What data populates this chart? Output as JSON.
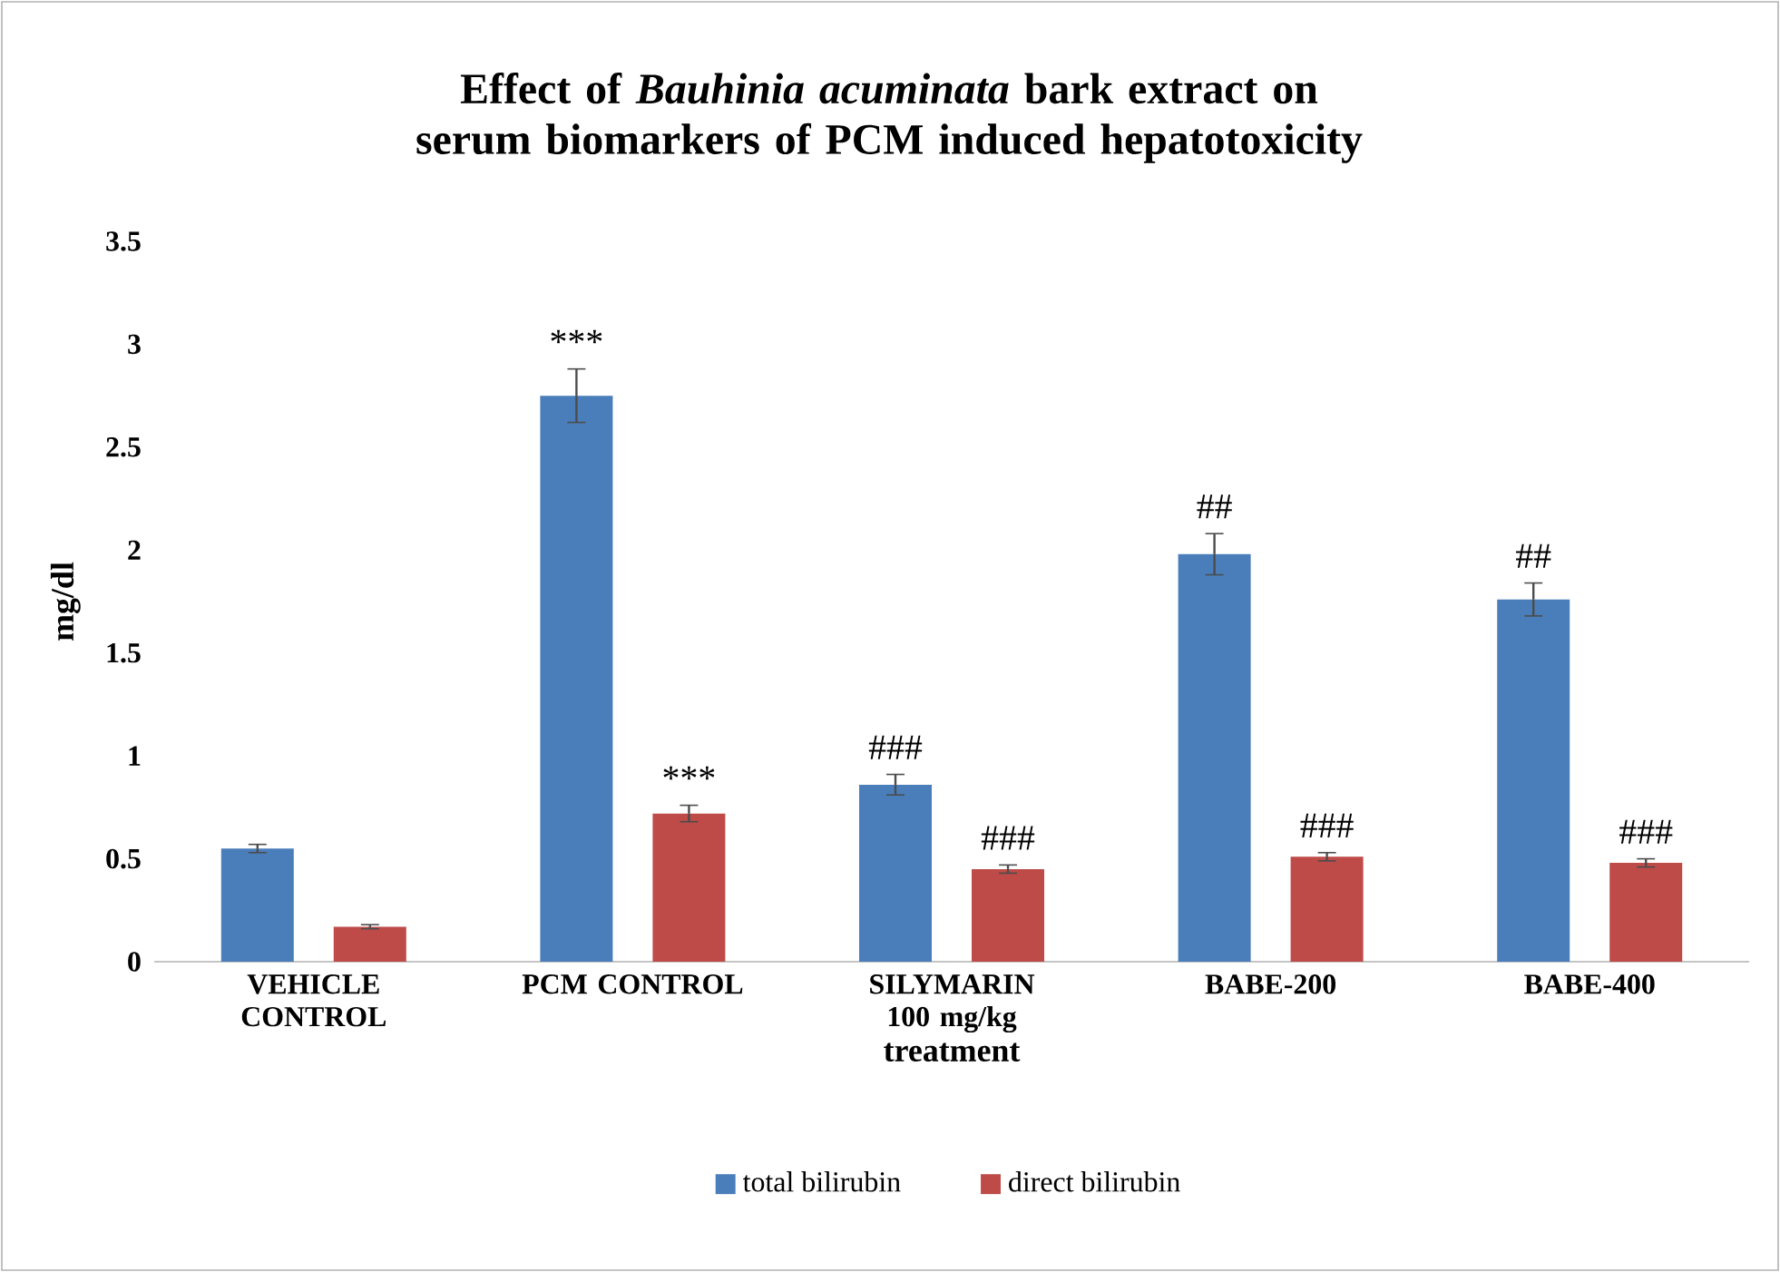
{
  "chart_data": {
    "type": "bar",
    "title": "Effect of *Bauhinia acuminata* bark extract on serum biomarkers of PCM induced hepatotoxicity",
    "xlabel": "treatment",
    "ylabel": "mg/dl",
    "categories": [
      "VEHICLE CONTROL",
      "PCM CONTROL",
      "SILYMARIN 100 mg/kg",
      "BABE-200",
      "BABE-400"
    ],
    "series": [
      {
        "name": "total bilirubin",
        "color": "#4a7ebb",
        "values": [
          0.55,
          2.75,
          0.86,
          1.98,
          1.76
        ],
        "errors": [
          0.02,
          0.13,
          0.05,
          0.1,
          0.08
        ],
        "value_labels": [
          null,
          "***",
          "###",
          "##",
          "##"
        ]
      },
      {
        "name": "direct bilirubin",
        "color": "#be4b48",
        "values": [
          0.17,
          0.72,
          0.45,
          0.51,
          0.48
        ],
        "errors": [
          0.01,
          0.04,
          0.02,
          0.02,
          0.02
        ],
        "value_labels": [
          null,
          "***",
          "###",
          "###",
          "###"
        ]
      }
    ],
    "ylim": [
      0,
      3.5
    ],
    "yticks": [
      0,
      0.5,
      1,
      1.5,
      2,
      2.5,
      3,
      3.5
    ],
    "grid": false,
    "legend": "bottom"
  }
}
